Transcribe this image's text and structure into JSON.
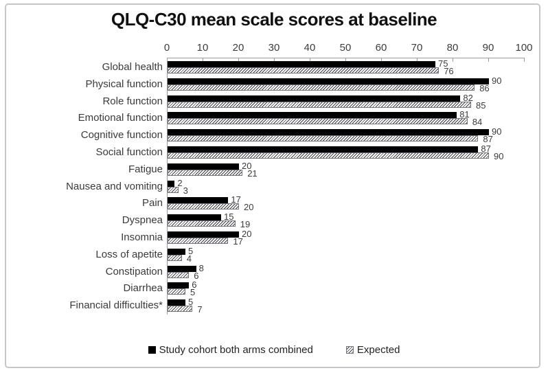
{
  "chart_data": {
    "type": "bar",
    "orientation": "horizontal",
    "title": "QLQ-C30 mean scale scores at baseline",
    "categories": [
      "Global health",
      "Physical function",
      "Role function",
      "Emotional function",
      "Cognitive function",
      "Social function",
      "Fatigue",
      "Nausea and vomiting",
      "Pain",
      "Dyspnea",
      "Insomnia",
      "Loss of apetite",
      "Constipation",
      "Diarrhea",
      "Financial difficulties*"
    ],
    "series": [
      {
        "name": "Study cohort both arms combined",
        "values": [
          75,
          90,
          82,
          81,
          90,
          87,
          20,
          2,
          17,
          15,
          20,
          5,
          8,
          6,
          5
        ],
        "style": "solid",
        "color": "#000000"
      },
      {
        "name": "Expected",
        "values": [
          76,
          86,
          85,
          84,
          87,
          90,
          21,
          3,
          20,
          19,
          17,
          4,
          6,
          5,
          7
        ],
        "style": "diagonal-hatch",
        "fill_color": "#ffffff",
        "hatch_color": "#3f3f3f",
        "border_color": "#70747e"
      }
    ],
    "x_axis": {
      "min": 0,
      "max": 100,
      "tick_step": 10,
      "ticks": [
        0,
        10,
        20,
        30,
        40,
        50,
        60,
        70,
        80,
        90,
        100
      ],
      "position": "top",
      "line_color": "#9b9b9b"
    },
    "value_labels": true,
    "grid": false,
    "legend_position": "bottom",
    "frame_border_color": "#c6c6c6"
  }
}
